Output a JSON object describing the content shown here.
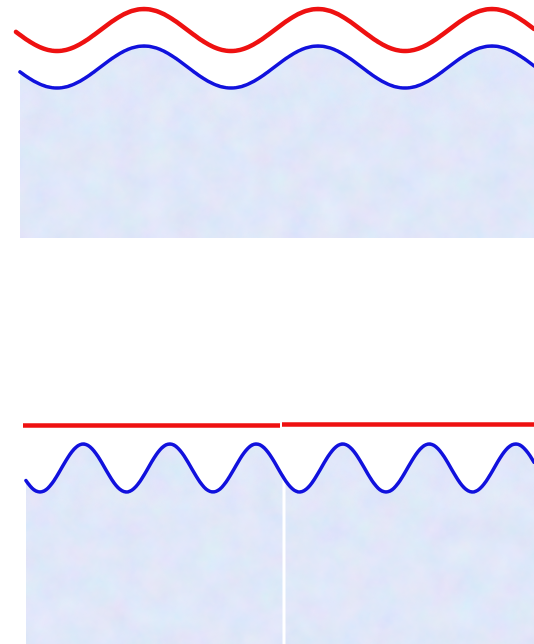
{
  "colors": {
    "background": "#ffffff",
    "wave_red": "#ee1111",
    "wave_blue": "#1111dd",
    "line_red": "#ee1111",
    "texture_light": "#c7e2f6",
    "texture_mid": "#a9c3ec",
    "texture_violet": "#c6b9ea",
    "texture_pink": "#dcc7ee",
    "seam": "#ffffff"
  },
  "icons": {
    "top_panel": "watercolor-texture-wave-border",
    "bottom_panel": "watercolor-texture-wave-border-tiled"
  }
}
